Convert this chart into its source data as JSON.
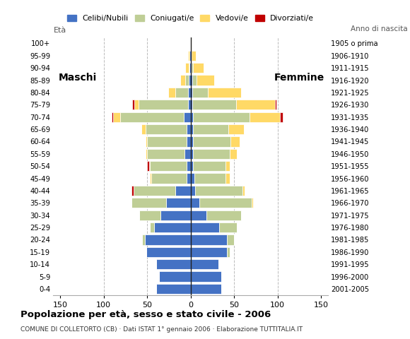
{
  "age_groups": [
    "0-4",
    "5-9",
    "10-14",
    "15-19",
    "20-24",
    "25-29",
    "30-34",
    "35-39",
    "40-44",
    "45-49",
    "50-54",
    "55-59",
    "60-64",
    "65-69",
    "70-74",
    "75-79",
    "80-84",
    "85-89",
    "90-94",
    "95-99",
    "100+"
  ],
  "birth_years": [
    "2001-2005",
    "1996-2000",
    "1991-1995",
    "1986-1990",
    "1981-1985",
    "1976-1980",
    "1971-1975",
    "1966-1970",
    "1961-1965",
    "1956-1960",
    "1951-1955",
    "1946-1950",
    "1941-1945",
    "1936-1940",
    "1931-1935",
    "1926-1930",
    "1921-1925",
    "1916-1920",
    "1911-1915",
    "1906-1910",
    "1905 o prima"
  ],
  "colors": {
    "celibe": "#4472C4",
    "coniugato": "#BFCE96",
    "vedovo": "#FFD966",
    "divorziato": "#C00000"
  },
  "males": {
    "celibe": [
      40,
      36,
      40,
      51,
      53,
      42,
      35,
      28,
      18,
      5,
      5,
      7,
      5,
      5,
      8,
      3,
      3,
      2,
      1,
      1,
      0
    ],
    "coniugato": [
      0,
      0,
      0,
      0,
      3,
      5,
      24,
      40,
      48,
      40,
      42,
      43,
      45,
      47,
      73,
      57,
      15,
      4,
      1,
      0,
      0
    ],
    "vedovo": [
      0,
      0,
      0,
      0,
      0,
      0,
      0,
      0,
      0,
      2,
      1,
      2,
      2,
      5,
      8,
      5,
      8,
      6,
      4,
      2,
      0
    ],
    "divorziato": [
      0,
      0,
      0,
      0,
      0,
      0,
      0,
      0,
      2,
      0,
      2,
      0,
      0,
      0,
      2,
      2,
      0,
      0,
      0,
      0,
      0
    ]
  },
  "females": {
    "celibe": [
      35,
      35,
      32,
      42,
      42,
      33,
      18,
      10,
      5,
      4,
      3,
      3,
      3,
      3,
      3,
      2,
      2,
      2,
      1,
      0,
      0
    ],
    "coniugato": [
      0,
      0,
      0,
      3,
      8,
      20,
      40,
      60,
      55,
      36,
      37,
      42,
      43,
      40,
      65,
      50,
      18,
      5,
      2,
      1,
      0
    ],
    "vedovo": [
      0,
      0,
      0,
      0,
      0,
      0,
      0,
      2,
      2,
      5,
      5,
      8,
      10,
      18,
      35,
      45,
      38,
      20,
      12,
      5,
      1
    ],
    "divorziato": [
      0,
      0,
      0,
      0,
      0,
      0,
      0,
      0,
      0,
      0,
      0,
      0,
      0,
      0,
      3,
      2,
      0,
      0,
      0,
      0,
      0
    ]
  },
  "title": "Popolazione per età, sesso e stato civile - 2006",
  "subtitle": "COMUNE DI COLLETORTO (CB) · Dati ISTAT 1° gennaio 2006 · Elaborazione TUTTITALIA.IT",
  "xlim": 158,
  "background_color": "#ffffff",
  "grid_color": "#bbbbbb"
}
